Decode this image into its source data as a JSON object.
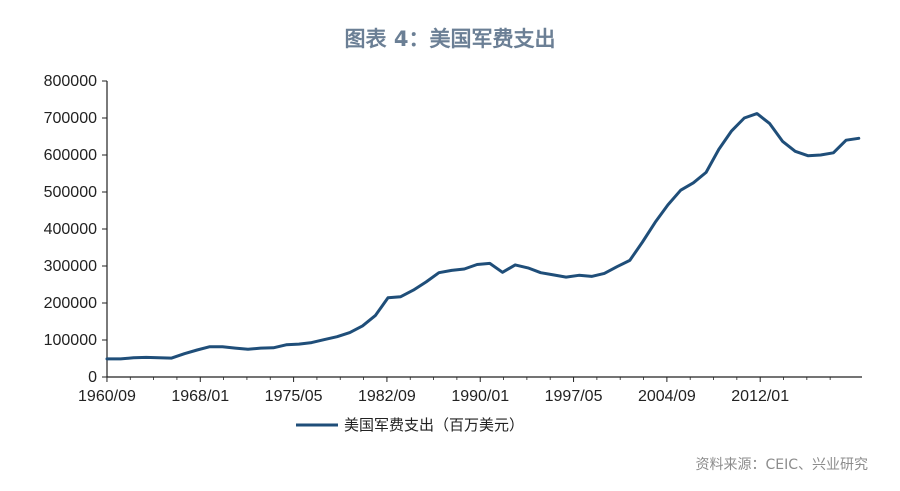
{
  "title": "图表 4：美国军费支出",
  "source": "资料来源：CEIC、兴业研究",
  "colors": {
    "title": "#6b7f95",
    "line": "#1f4e79",
    "axis": "#222222",
    "source": "#8c8c8c"
  },
  "chart_data": {
    "type": "line",
    "title": "图表 4：美国军费支出",
    "xlabel": "",
    "ylabel": "",
    "ylim": [
      0,
      800000
    ],
    "y_ticks": [
      0,
      100000,
      200000,
      300000,
      400000,
      500000,
      600000,
      700000,
      800000
    ],
    "x_ticks": [
      "1960/09",
      "1968/01",
      "1975/05",
      "1982/09",
      "1990/01",
      "1997/05",
      "2004/09",
      "2012/01"
    ],
    "xlim": [
      1960.67,
      2020.0
    ],
    "grid": false,
    "legend": "bottom-center",
    "series": [
      {
        "name": "美国军费支出（百万美元）",
        "x": [
          1960.67,
          1961.75,
          1962.75,
          1963.75,
          1964.75,
          1965.75,
          1966.75,
          1967.75,
          1968.75,
          1969.75,
          1970.75,
          1971.75,
          1972.75,
          1973.75,
          1974.75,
          1975.75,
          1976.75,
          1977.75,
          1978.75,
          1979.75,
          1980.75,
          1981.75,
          1982.75,
          1983.75,
          1984.75,
          1985.75,
          1986.75,
          1987.75,
          1988.75,
          1989.75,
          1990.75,
          1991.75,
          1992.75,
          1993.75,
          1994.75,
          1995.75,
          1996.75,
          1997.75,
          1998.75,
          1999.75,
          2000.75,
          2001.75,
          2002.75,
          2003.75,
          2004.75,
          2005.75,
          2006.75,
          2007.75,
          2008.75,
          2009.75,
          2010.75,
          2011.75,
          2012.75,
          2013.75,
          2014.75,
          2015.75,
          2016.75,
          2017.75,
          2018.75,
          2019.75
        ],
        "values": [
          49000,
          49000,
          52000,
          53000,
          52000,
          51000,
          63000,
          73000,
          82000,
          82000,
          78000,
          75000,
          78000,
          79000,
          87000,
          89000,
          93000,
          101000,
          109000,
          120000,
          138000,
          166000,
          214000,
          217000,
          235000,
          257000,
          282000,
          288000,
          292000,
          304000,
          307000,
          283000,
          303000,
          295000,
          282000,
          276000,
          270000,
          275000,
          272000,
          280000,
          298000,
          315000,
          365000,
          418000,
          465000,
          505000,
          525000,
          553000,
          615000,
          665000,
          700000,
          712000,
          685000,
          637000,
          610000,
          598000,
          600000,
          606000,
          640000,
          645000
        ]
      }
    ]
  }
}
